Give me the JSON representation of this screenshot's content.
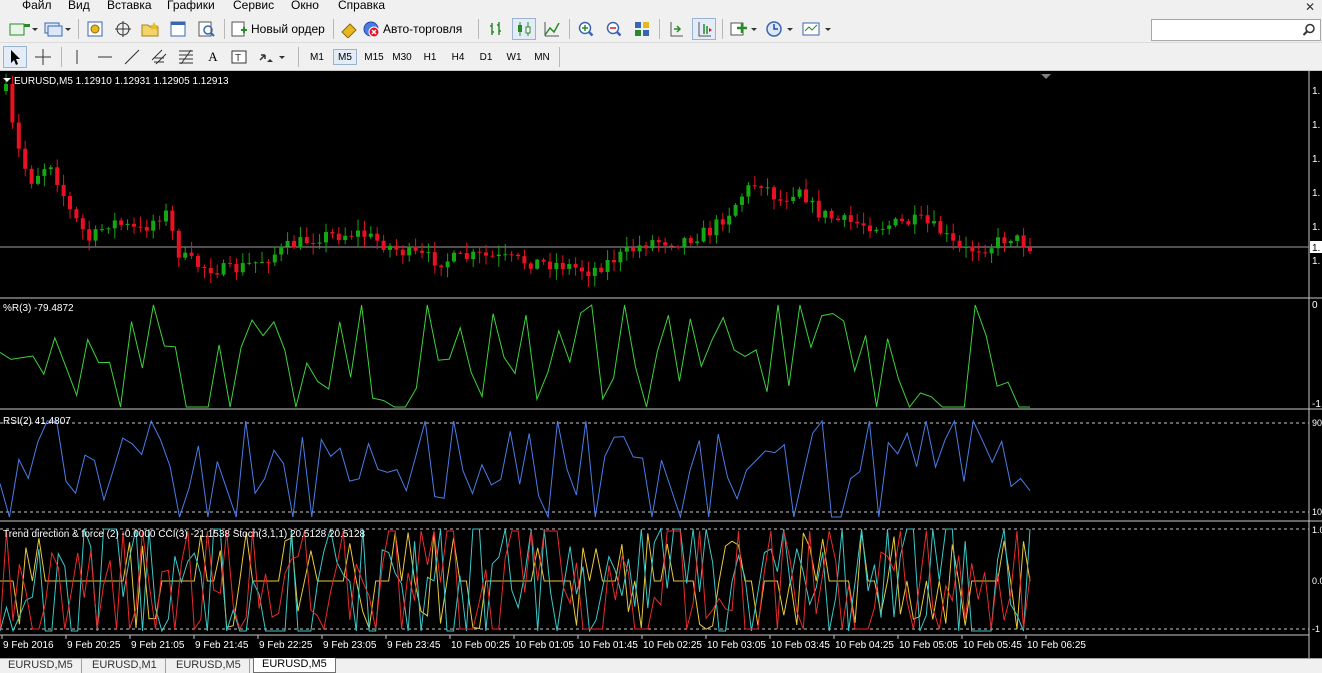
{
  "menu": [
    "Файл",
    "Вид",
    "Вставка",
    "Графики",
    "Сервис",
    "Окно",
    "Справка"
  ],
  "toolbar": {
    "new_order_label": "Новый ордер",
    "autotrading_label": "Авто-торговля",
    "timeframes": [
      "M1",
      "M5",
      "M15",
      "M30",
      "H1",
      "H4",
      "D1",
      "W1",
      "MN"
    ],
    "active_timeframe": "M5",
    "search_placeholder": ""
  },
  "chart": {
    "header": "EURUSD,M5  1.12910 1.12931 1.12905 1.12913",
    "wpr_label": "%R(3) -79.4872",
    "rsi_label": "RSI(2) 41.4807",
    "combo_label": "Trend direction & force (2) -0.0000  CCI(3) -21.1538  Stoch(3,1,1) 20.5128 20.5128",
    "right_labels": {
      "price": [
        "1.",
        "1.",
        "1.",
        "1.",
        "1.",
        "1.",
        "1."
      ],
      "wpr": [
        "0",
        "-1"
      ],
      "rsi": [
        "90",
        "10"
      ],
      "combo": [
        "1.0",
        "0.0",
        "-1"
      ]
    },
    "time_labels": [
      "9 Feb 2016",
      "9 Feb 20:25",
      "9 Feb 21:05",
      "9 Feb 21:45",
      "9 Feb 22:25",
      "9 Feb 23:05",
      "9 Feb 23:45",
      "10 Feb 00:25",
      "10 Feb 01:05",
      "10 Feb 01:45",
      "10 Feb 02:25",
      "10 Feb 03:05",
      "10 Feb 03:45",
      "10 Feb 04:25",
      "10 Feb 05:05",
      "10 Feb 05:45",
      "10 Feb 06:25"
    ]
  },
  "tabs": [
    "EURUSD,M5",
    "EURUSD,M1",
    "EURUSD,M5",
    "EURUSD,M5"
  ],
  "active_tab_index": 3,
  "colors": {
    "bull": "#15a515",
    "bear": "#e81123",
    "wpr": "#3cd23c",
    "rsi": "#4a7de8",
    "trend": "#e8c83c",
    "cci": "#3cc8c8",
    "stoch": "#e82c2c"
  }
}
